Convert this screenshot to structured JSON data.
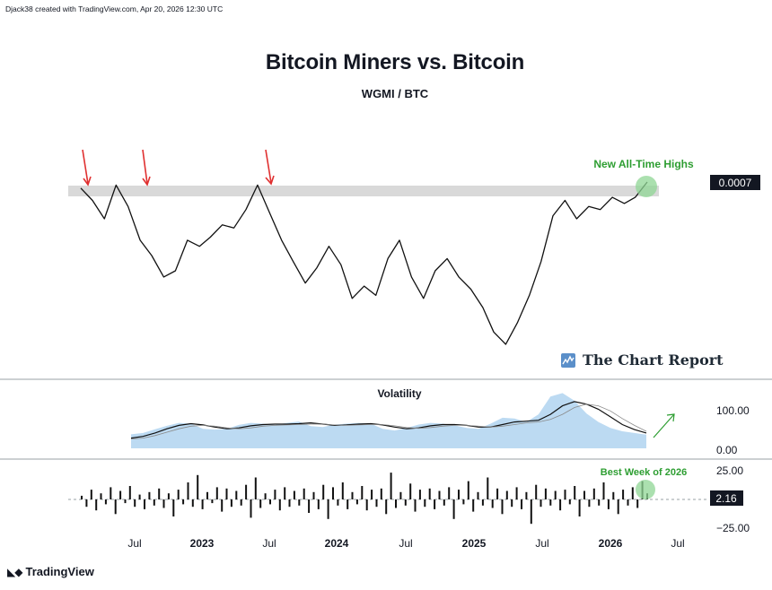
{
  "attribution": "Djack38 created with TradingView.com, Apr 20, 2026 12:30 UTC",
  "title": "Bitcoin Miners vs. Bitcoin",
  "subtitle": "WGMI / BTC",
  "brand": "The Chart Report",
  "platform": "TradingView",
  "colors": {
    "price_line": "#111111",
    "resistance_band": "#d9d9d9",
    "arrow": "#e03131",
    "highlight_text": "#2e9e32",
    "highlight_circle": "#8fd694",
    "volatility_fill": "#bcdaf2",
    "label_bg": "#131722"
  },
  "chart_data": [
    {
      "type": "line",
      "title": "WGMI / BTC",
      "price_label": "0.0007",
      "resistance_level": 0.0007,
      "annotation": "New All-Time Highs",
      "markers": [
        "down-arrow",
        "down-arrow",
        "down-arrow",
        "highlight-circle"
      ],
      "x_ticks": [
        "Jul",
        "2023",
        "Jul",
        "2024",
        "Jul",
        "2025",
        "Jul",
        "2026",
        "Jul"
      ],
      "series": [
        {
          "x": [
            "2022-04",
            "2022-05",
            "2022-06",
            "2022-07",
            "2022-08",
            "2022-09",
            "2022-10",
            "2022-11",
            "2022-12",
            "2023-01",
            "2023-02",
            "2023-03",
            "2023-04",
            "2023-05",
            "2023-06",
            "2023-07",
            "2023-08",
            "2023-09",
            "2023-10",
            "2023-11",
            "2023-12",
            "2024-01",
            "2024-02",
            "2024-03",
            "2024-04",
            "2024-05",
            "2024-06",
            "2024-07",
            "2024-08",
            "2024-09",
            "2024-10",
            "2024-11",
            "2024-12",
            "2025-01",
            "2025-02",
            "2025-03",
            "2025-04",
            "2025-05",
            "2025-06",
            "2025-07",
            "2025-08",
            "2025-09",
            "2025-10",
            "2025-11",
            "2025-12",
            "2026-01",
            "2026-02",
            "2026-03",
            "2026-04"
          ],
          "y": [
            0.00069,
            0.00065,
            0.00059,
            0.0007,
            0.00063,
            0.00052,
            0.00047,
            0.0004,
            0.00042,
            0.00052,
            0.0005,
            0.00053,
            0.00057,
            0.00056,
            0.00062,
            0.0007,
            0.00061,
            0.00052,
            0.00045,
            0.00038,
            0.00043,
            0.0005,
            0.00044,
            0.00033,
            0.00037,
            0.00034,
            0.00046,
            0.00052,
            0.0004,
            0.00033,
            0.00042,
            0.00046,
            0.0004,
            0.00036,
            0.0003,
            0.00022,
            0.00018,
            0.00025,
            0.00034,
            0.00045,
            0.0006,
            0.00065,
            0.00059,
            0.00063,
            0.00062,
            0.00066,
            0.00064,
            0.00066,
            0.00071
          ]
        }
      ]
    },
    {
      "type": "area",
      "title": "Volatility",
      "y_ticks": [
        "100.00",
        "0.00"
      ],
      "series": [
        {
          "name": "",
          "values": [
            33,
            36,
            45,
            53,
            60,
            58,
            46,
            44,
            46,
            55,
            60,
            58,
            55,
            60,
            63,
            52,
            50,
            56,
            58,
            60,
            58,
            46,
            42,
            48,
            56,
            60,
            58,
            54,
            48,
            46,
            58,
            72,
            70,
            62,
            80,
            122,
            130,
            112,
            82,
            62,
            48,
            40,
            36,
            32
          ]
        },
        {
          "name": "",
          "values": [
            24,
            28,
            36,
            46,
            54,
            58,
            55,
            50,
            46,
            48,
            53,
            56,
            57,
            57,
            58,
            60,
            57,
            54,
            55,
            57,
            58,
            55,
            50,
            46,
            48,
            53,
            56,
            56,
            54,
            50,
            50,
            56,
            62,
            64,
            66,
            80,
            100,
            110,
            104,
            92,
            74,
            56,
            44,
            36
          ]
        },
        {
          "name": "",
          "values": [
            22,
            24,
            30,
            38,
            46,
            52,
            54,
            52,
            48,
            46,
            48,
            52,
            54,
            55,
            56,
            57,
            57,
            55,
            54,
            55,
            56,
            56,
            53,
            49,
            47,
            49,
            52,
            54,
            54,
            52,
            50,
            52,
            56,
            60,
            62,
            68,
            80,
            96,
            104,
            100,
            88,
            70,
            54,
            40
          ]
        }
      ]
    },
    {
      "type": "bar",
      "title": "",
      "annotation": "Best Week of 2026",
      "current_label": "2.16",
      "y_ticks": [
        "25.00",
        "−25.00"
      ],
      "values": [
        3,
        -6,
        8,
        -9,
        5,
        -4,
        10,
        -12,
        7,
        -3,
        11,
        -6,
        4,
        -8,
        6,
        -5,
        9,
        -7,
        5,
        -14,
        8,
        -4,
        14,
        -6,
        20,
        -8,
        6,
        -3,
        10,
        -10,
        9,
        -6,
        7,
        -5,
        12,
        -15,
        18,
        -7,
        5,
        -4,
        8,
        -9,
        10,
        -6,
        7,
        -5,
        9,
        -11,
        6,
        -8,
        12,
        -16,
        10,
        -5,
        14,
        -8,
        6,
        -4,
        11,
        -9,
        8,
        -6,
        9,
        -12,
        22,
        -7,
        6,
        -5,
        13,
        -10,
        8,
        -6,
        9,
        -8,
        7,
        -5,
        10,
        -16,
        8,
        -4,
        15,
        -10,
        6,
        -5,
        18,
        -7,
        9,
        -12,
        7,
        -6,
        10,
        -8,
        6,
        -20,
        12,
        -6,
        9,
        -5,
        7,
        -9,
        8,
        -4,
        11,
        -14,
        7,
        -6,
        9,
        -5,
        14,
        -8,
        6,
        -12,
        8,
        -5,
        10,
        -7,
        15,
        5
      ]
    }
  ]
}
